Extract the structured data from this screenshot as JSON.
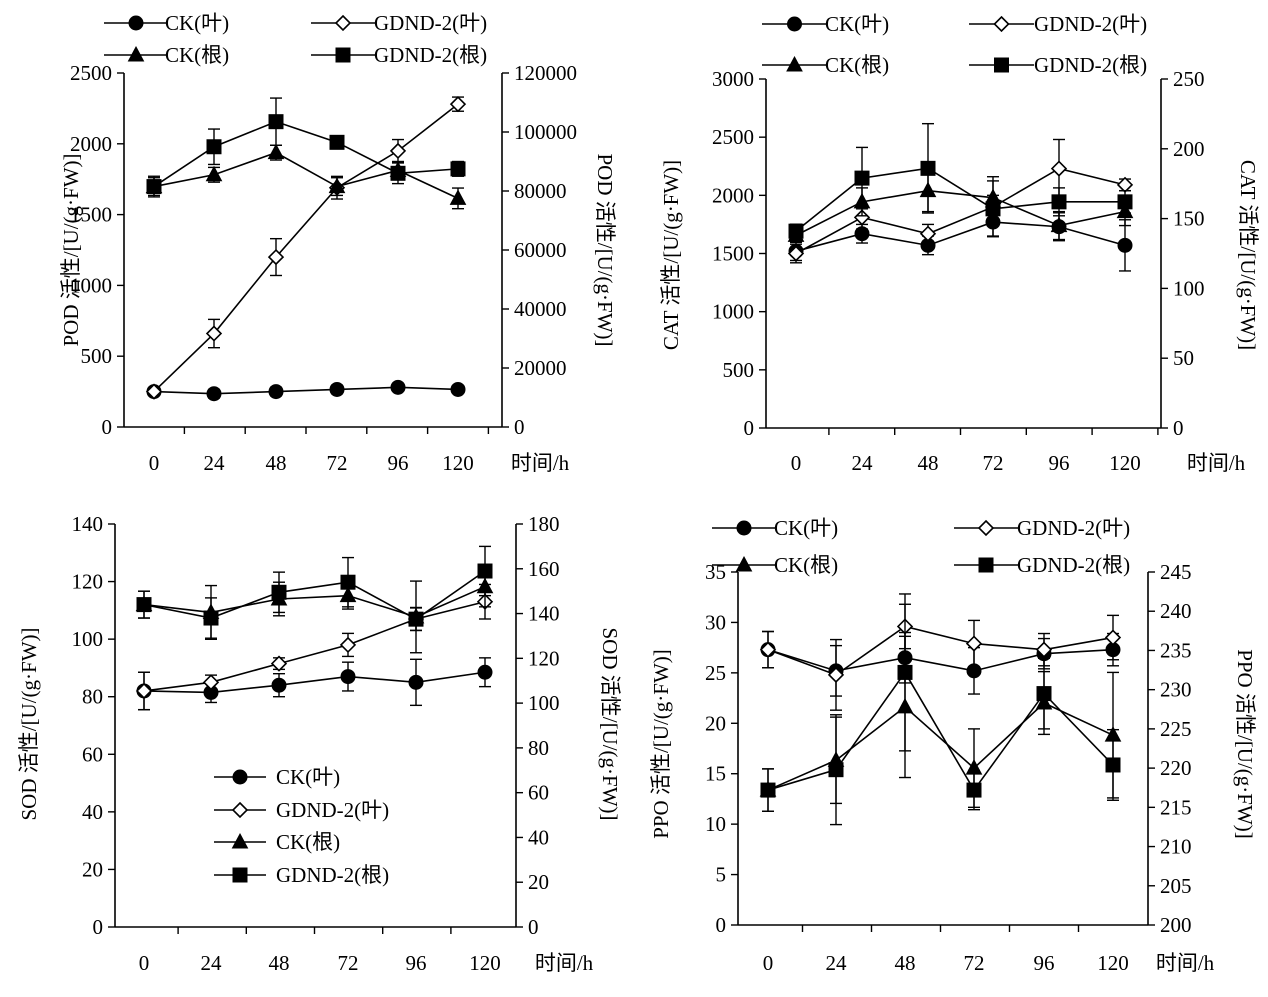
{
  "chart_data": [
    {
      "type": "line",
      "x": [
        0,
        24,
        48,
        72,
        96,
        120
      ],
      "xlabel": "时间/h",
      "ylabel": "POD 活性/[U/(g·FW)]",
      "y2label": "POD 活性/[U/(g·FW)]",
      "ylim": [
        0,
        2500
      ],
      "yticks": [
        0,
        500,
        1000,
        1500,
        2000,
        2500
      ],
      "y2lim": [
        0,
        120000
      ],
      "y2ticks": [
        0,
        20000,
        40000,
        60000,
        80000,
        100000,
        120000
      ],
      "legend_position": "top",
      "series": [
        {
          "name": "CK(叶)",
          "marker": "circle",
          "axis": "left",
          "values": [
            250,
            235,
            250,
            265,
            280,
            265
          ],
          "errors": [
            25,
            30,
            30,
            30,
            25,
            20
          ]
        },
        {
          "name": "GDND-2(叶)",
          "marker": "diamond",
          "axis": "left",
          "values": [
            250,
            660,
            1200,
            1690,
            1950,
            2280
          ],
          "errors": [
            20,
            100,
            130,
            80,
            80,
            50
          ]
        },
        {
          "name": "CK(根)",
          "marker": "triangle",
          "axis": "right",
          "values": [
            81500,
            85500,
            93000,
            81500,
            87000,
            77500
          ],
          "errors": [
            3000,
            2500,
            2500,
            3000,
            3000,
            3500
          ]
        },
        {
          "name": "GDND-2(根)",
          "marker": "square",
          "axis": "right",
          "values": [
            81500,
            95000,
            103500,
            96500,
            86000,
            87500
          ],
          "errors": [
            3500,
            6000,
            8000,
            2000,
            3500,
            2500
          ]
        }
      ]
    },
    {
      "type": "line",
      "x": [
        0,
        24,
        48,
        72,
        96,
        120
      ],
      "xlabel": "时间/h",
      "ylabel": "CAT 活性/[U/(g·FW)]",
      "y2label": "CAT 活性/[U/(g·FW)]",
      "ylim": [
        0,
        3000
      ],
      "yticks": [
        0,
        500,
        1000,
        1500,
        2000,
        2500,
        3000
      ],
      "y2lim": [
        0,
        250
      ],
      "y2ticks": [
        0,
        50,
        100,
        150,
        200,
        250
      ],
      "legend_position": "top",
      "series": [
        {
          "name": "CK(叶)",
          "marker": "circle",
          "axis": "left",
          "values": [
            1520,
            1670,
            1570,
            1770,
            1730,
            1570
          ],
          "errors": [
            80,
            80,
            80,
            120,
            120,
            220
          ]
        },
        {
          "name": "GDND-2(叶)",
          "marker": "diamond",
          "axis": "left",
          "values": [
            1500,
            1810,
            1670,
            1900,
            2230,
            2090
          ],
          "errors": [
            80,
            100,
            80,
            100,
            250,
            50
          ]
        },
        {
          "name": "CK(根)",
          "marker": "triangle",
          "axis": "right",
          "values": [
            138,
            162,
            170,
            165,
            145,
            155
          ],
          "errors": [
            5,
            10,
            15,
            15,
            10,
            10
          ]
        },
        {
          "name": "GDND-2(根)",
          "marker": "square",
          "axis": "right",
          "values": [
            141,
            179,
            186,
            157,
            162,
            162
          ],
          "errors": [
            5,
            22,
            32,
            20,
            10,
            8
          ]
        }
      ]
    },
    {
      "type": "line",
      "x": [
        0,
        24,
        48,
        72,
        96,
        120
      ],
      "xlabel": "时间/h",
      "ylabel": "SOD 活性/[U/(g·FW)]",
      "y2label": "SOD 活性/[U/(g·FW)]",
      "ylim": [
        0,
        140
      ],
      "yticks": [
        0,
        20,
        40,
        60,
        80,
        100,
        120,
        140
      ],
      "y2lim": [
        0,
        180
      ],
      "y2ticks": [
        0,
        20,
        40,
        60,
        80,
        100,
        120,
        140,
        160,
        180
      ],
      "legend_position": "lower-left inside",
      "series": [
        {
          "name": "CK(叶)",
          "marker": "circle",
          "axis": "left",
          "values": [
            82,
            81.5,
            84,
            87,
            85,
            88.5
          ],
          "errors": [
            6.5,
            3.5,
            4,
            5,
            8,
            5
          ]
        },
        {
          "name": "GDND-2(叶)",
          "marker": "diamond",
          "axis": "left",
          "values": [
            82,
            85,
            91.5,
            98,
            107,
            113
          ],
          "errors": [
            6.5,
            2.5,
            2,
            4,
            4,
            6
          ]
        },
        {
          "name": "CK(根)",
          "marker": "triangle",
          "axis": "right",
          "values": [
            144,
            140.5,
            146.5,
            148,
            138.5,
            152
          ],
          "errors": [
            6,
            12,
            7.5,
            6,
            16,
            9
          ]
        },
        {
          "name": "GDND-2(根)",
          "marker": "square",
          "axis": "right",
          "values": [
            144,
            138,
            149.5,
            154,
            137.5,
            159
          ],
          "errors": [
            6,
            9,
            9,
            11,
            5,
            11
          ]
        }
      ]
    },
    {
      "type": "line",
      "x": [
        0,
        24,
        48,
        72,
        96,
        120
      ],
      "xlabel": "时间/h",
      "ylabel": "PPO 活性/[U/(g·FW)]",
      "y2label": "PPO 活性/[U/(g·FW)]",
      "ylim": [
        0,
        35
      ],
      "yticks": [
        0,
        5,
        10,
        15,
        20,
        25,
        30,
        35
      ],
      "y2lim": [
        200,
        245
      ],
      "y2ticks": [
        200,
        205,
        210,
        215,
        220,
        225,
        230,
        235,
        240,
        245
      ],
      "legend_position": "top",
      "series": [
        {
          "name": "CK(叶)",
          "marker": "circle",
          "axis": "left",
          "values": [
            27.3,
            25.2,
            26.5,
            25.2,
            26.9,
            27.3
          ],
          "errors": [
            1.8,
            2.5,
            2.5,
            2.3,
            1.5,
            1.6
          ]
        },
        {
          "name": "GDND-2(叶)",
          "marker": "diamond",
          "axis": "left",
          "values": [
            27.3,
            24.8,
            29.6,
            27.9,
            27.3,
            28.5
          ],
          "errors": [
            1.8,
            3.5,
            2.2,
            2.3,
            1.6,
            2.2
          ]
        },
        {
          "name": "CK(根)",
          "marker": "triangle",
          "axis": "right",
          "values": [
            217.2,
            221,
            227.8,
            220,
            228.3,
            224.2
          ],
          "errors": [
            2.7,
            5.5,
            9,
            5,
            4,
            8
          ]
        },
        {
          "name": "GDND-2(根)",
          "marker": "square",
          "axis": "right",
          "values": [
            217.2,
            219.8,
            232.2,
            217.2,
            229.5,
            220.4
          ],
          "errors": [
            2.7,
            7,
            10,
            2.5,
            4.5,
            4.5
          ]
        }
      ]
    }
  ]
}
